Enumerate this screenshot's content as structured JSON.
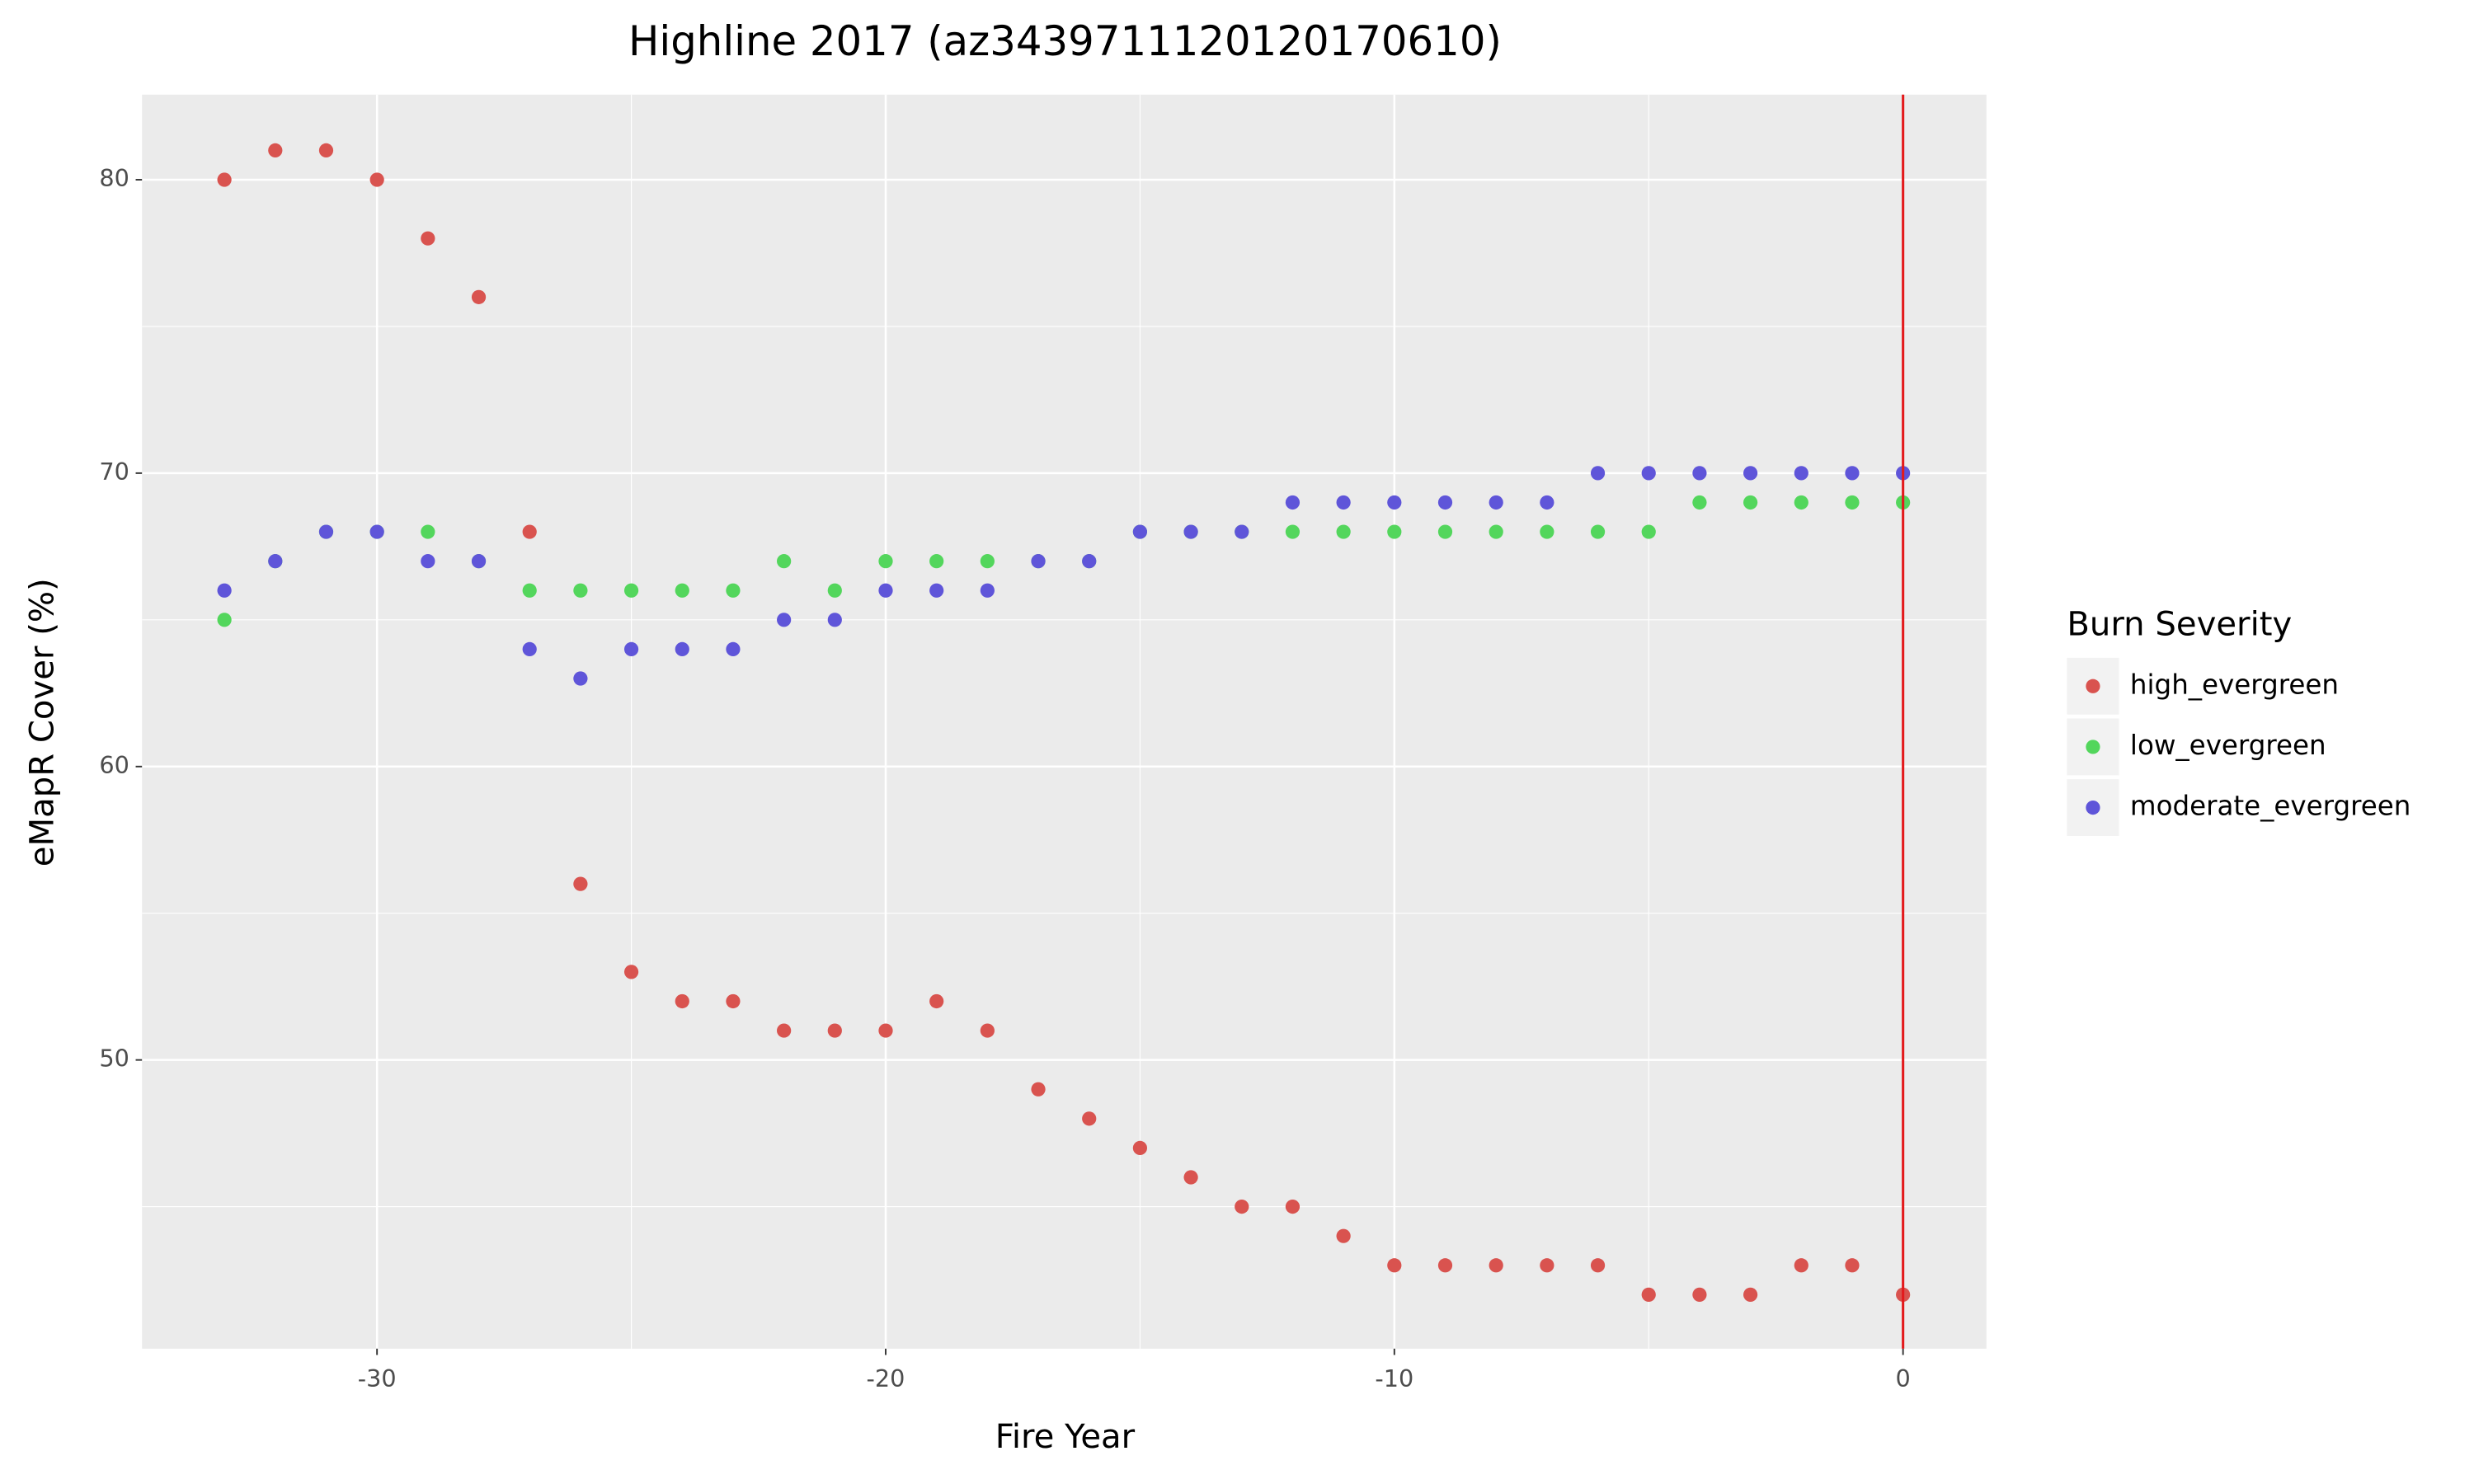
{
  "chart_data": {
    "type": "scatter",
    "title": "Highline 2017 (az3439711120120170610)",
    "x_label": "Fire Year",
    "y_label": "eMapR Cover (%)",
    "legend_title": "Burn Severity",
    "legend_position": "right",
    "grid": true,
    "xlim": [
      -34.62,
      1.64
    ],
    "ylim": [
      40.16,
      82.9
    ],
    "xticks": [
      -30,
      -20,
      -10,
      0
    ],
    "yticks": [
      50,
      60,
      70,
      80
    ],
    "xminor": [
      -25,
      -15,
      -5
    ],
    "yminor": [
      45,
      55,
      65,
      75
    ],
    "vline": {
      "x": 0,
      "color": "#e31a1c"
    },
    "x": [
      -33,
      -32,
      -31,
      -30,
      -29,
      -28,
      -27,
      -26,
      -25,
      -24,
      -23,
      -22,
      -21,
      -20,
      -19,
      -18,
      -17,
      -16,
      -15,
      -14,
      -13,
      -12,
      -11,
      -10,
      -9,
      -8,
      -7,
      -6,
      -5,
      -4,
      -3,
      -2,
      -1,
      0
    ],
    "series": [
      {
        "name": "high_evergreen",
        "color": "#d9534f",
        "values": [
          80,
          81,
          81,
          80,
          78,
          76,
          68,
          56,
          53,
          52,
          52,
          51,
          51,
          51,
          52,
          51,
          49,
          48,
          47,
          46,
          45,
          45,
          44,
          43,
          43,
          43,
          43,
          43,
          42,
          42,
          42,
          43,
          43,
          42
        ]
      },
      {
        "name": "low_evergreen",
        "color": "#53d65c",
        "values": [
          65,
          67,
          68,
          68,
          68,
          67,
          66,
          66,
          66,
          66,
          66,
          67,
          66,
          67,
          67,
          67,
          67,
          67,
          68,
          68,
          68,
          68,
          68,
          68,
          68,
          68,
          68,
          68,
          68,
          69,
          69,
          69,
          69,
          69
        ]
      },
      {
        "name": "moderate_evergreen",
        "color": "#5f55d9",
        "values": [
          66,
          67,
          68,
          68,
          67,
          67,
          64,
          63,
          64,
          64,
          64,
          65,
          65,
          66,
          66,
          66,
          67,
          67,
          68,
          68,
          68,
          69,
          69,
          69,
          69,
          69,
          69,
          70,
          70,
          70,
          70,
          70,
          70,
          70
        ]
      }
    ]
  }
}
